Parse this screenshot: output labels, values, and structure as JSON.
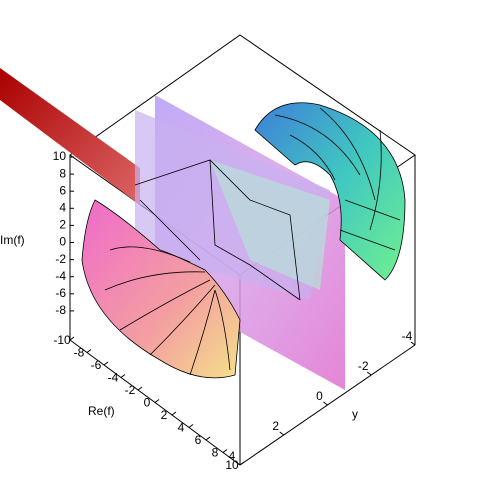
{
  "chart_data": {
    "type": "surface3d",
    "zlabel": "Im(f)",
    "xlabel": "Re(f)",
    "ylabel": "y",
    "zlim": [
      -10,
      10
    ],
    "zticks": [
      10,
      8,
      6,
      4,
      2,
      0,
      -2,
      -4,
      -6,
      -8
    ],
    "xlim": [
      -10,
      10
    ],
    "xticks": [
      -10,
      -8,
      -6,
      -4,
      -2,
      0,
      2,
      4,
      6,
      8,
      10
    ],
    "ylim": [
      -4,
      4
    ],
    "yticks": [
      4,
      2,
      0,
      -2,
      -4
    ]
  }
}
